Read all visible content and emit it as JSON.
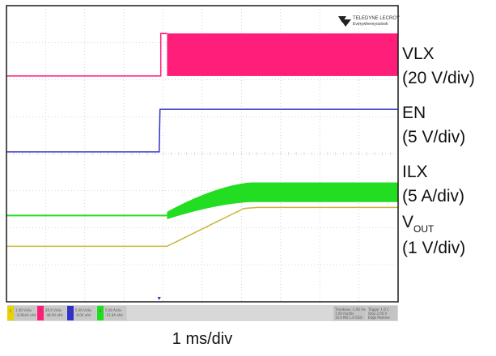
{
  "header": {
    "logo_brand": "TELEDYNE LECROY",
    "logo_tagline": "Everywhereyoulook"
  },
  "chart_data": {
    "type": "line",
    "x": {
      "unit": "ms",
      "per_div": 1,
      "divisions": 10,
      "range": [
        0,
        10
      ]
    },
    "grid": true,
    "timebase_label": "1 ms/div",
    "series": [
      {
        "key": "vlx",
        "label": "VLX",
        "scale_label": "(20 V/div)",
        "color": "#ff1f7a",
        "baseline_div": 6.1,
        "steps": [
          {
            "t_ms": 0,
            "level_div": 0,
            "band_div": 0
          },
          {
            "t_ms": 3.94,
            "level_div": 0,
            "band_div": 0
          },
          {
            "t_ms": 4.1,
            "level_div": 0,
            "band_div": 1.15
          }
        ]
      },
      {
        "key": "en",
        "label": "EN",
        "scale_label": "(5 V/div)",
        "color": "#3030c8",
        "baseline_div": 4.05,
        "steps": [
          {
            "t_ms": 0,
            "level_div": 0
          },
          {
            "t_ms": 3.9,
            "level_div": 0
          },
          {
            "t_ms": 3.92,
            "level_div": 1.15
          },
          {
            "t_ms": 10,
            "level_div": 1.15
          }
        ]
      },
      {
        "key": "ilx",
        "label": "ILX",
        "scale_label": "(5 A/div)",
        "color": "#22dd22",
        "baseline_div": 2.33,
        "ramp": {
          "start_ms": 4.1,
          "end_ms": 6.3,
          "final_div": 0.63,
          "final_ripple_div": 0.53,
          "start_ripple_div": 0.2
        }
      },
      {
        "key": "vout",
        "label": "V",
        "label_sub": "OUT",
        "scale_label": "(1 V/div)",
        "color": "#c8b43c",
        "baseline_div": 1.5,
        "ramp": {
          "start_ms": 4.1,
          "end_ms": 6.4,
          "final_div": 1.05
        }
      }
    ]
  },
  "status_bar": {
    "channels": [
      {
        "id": "1",
        "color": "#e6d200",
        "texts": [
          "1.00 V/div",
          "-3.00mV ofst"
        ]
      },
      {
        "id": "2",
        "color": "#ff1f7a",
        "texts": [
          "20.0 V/div",
          "-48.0V ofst"
        ]
      },
      {
        "id": "3",
        "color": "#3030c8",
        "texts": [
          "5.00 V/div",
          "-8.0V ofst"
        ]
      },
      {
        "id": "4",
        "color": "#22dd22",
        "texts": [
          "5.00 A/div",
          "-15.0A ofst"
        ]
      }
    ],
    "timebase": {
      "texts": [
        "Timebase -1.00 ms",
        "1.00 ms/div",
        "10.0 MS  1.0 GS/s"
      ]
    },
    "trigger": {
      "texts": [
        "Trigger 1 D C",
        "Stop 2.00 V",
        "Edge Positive"
      ]
    }
  }
}
